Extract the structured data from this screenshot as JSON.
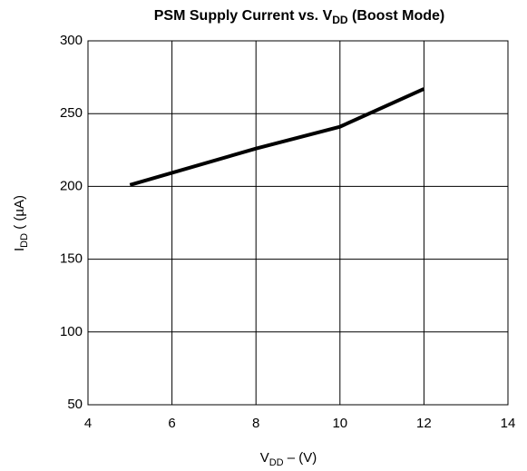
{
  "chart_data": {
    "type": "line",
    "title": [
      "PSM Supply Current vs. V",
      "DD",
      " (Boost Mode)"
    ],
    "x_label": [
      "V",
      "DD",
      " – (V)"
    ],
    "y_label": [
      "I",
      "DD",
      " ( (µA)"
    ],
    "x": [
      5,
      8,
      10,
      12
    ],
    "series": [
      {
        "color": "#000000",
        "values": [
          201,
          226,
          241,
          267
        ]
      }
    ],
    "xlim": [
      4,
      14
    ],
    "xticks": [
      4,
      6,
      8,
      10,
      12,
      14
    ],
    "ylim": [
      50,
      300
    ],
    "yticks": [
      50,
      100,
      150,
      200,
      250,
      300
    ],
    "grid": true
  }
}
